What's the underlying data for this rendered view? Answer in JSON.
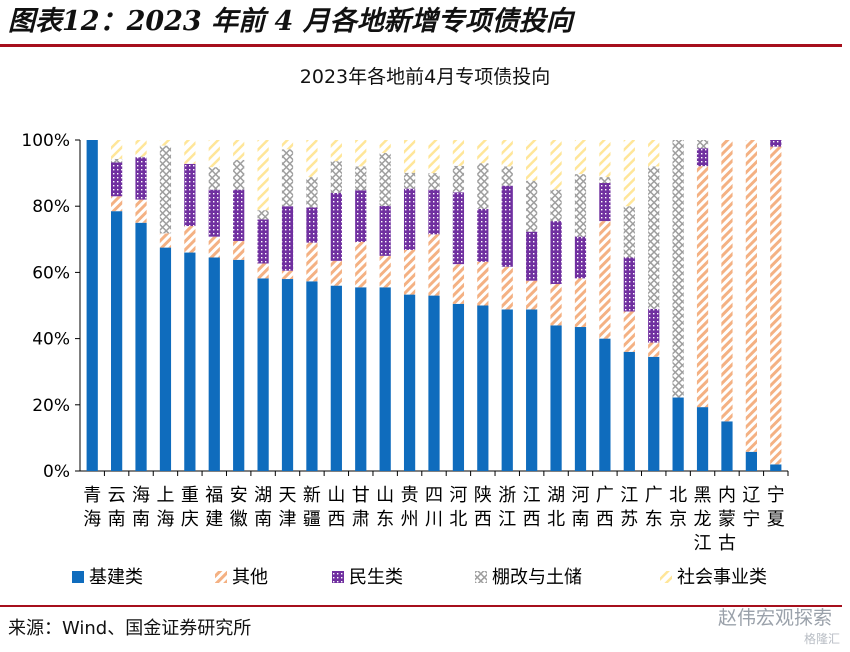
{
  "figure_title": "图表12：2023 年前 4 月各地新增专项债投向",
  "source_text": "来源：Wind、国金证券研究所",
  "watermark": "赵伟宏观探索",
  "watermark_sub": "格隆汇",
  "colors": {
    "rule": "#a60f1c",
    "infrastructure": "#0f6cbd",
    "other": "#f4b183",
    "livelihood": "#7030a0",
    "shantytown": "#bfbfbf",
    "social": "#ffe699"
  },
  "chart_data": {
    "type": "bar",
    "stacked": true,
    "title": "2023年各地前4月专项债投向",
    "ylim": [
      0,
      100
    ],
    "y_ticks": [
      "0%",
      "20%",
      "40%",
      "60%",
      "80%",
      "100%"
    ],
    "grid": false,
    "legend_position": "bottom",
    "categories": [
      "青海",
      "云南",
      "海南",
      "上海",
      "重庆",
      "福建",
      "安徽",
      "湖南",
      "天津",
      "新疆",
      "山西",
      "甘肃",
      "山东",
      "贵州",
      "四川",
      "河北",
      "陕西",
      "浙江",
      "江西",
      "湖北",
      "河南",
      "广西",
      "江苏",
      "广东",
      "北京",
      "黑龙江",
      "内蒙古",
      "辽宁",
      "宁夏"
    ],
    "series": [
      {
        "name": "基建类",
        "values": [
          100,
          78.5,
          75,
          67.5,
          66,
          64.5,
          63.8,
          58.2,
          58,
          57.3,
          56,
          55.5,
          55.5,
          53.3,
          53,
          50.5,
          50,
          48.8,
          48.8,
          44,
          43.5,
          40,
          36,
          34.5,
          22.2,
          19.3,
          15,
          5.8,
          2
        ]
      },
      {
        "name": "其他",
        "values": [
          0,
          4.5,
          7,
          4.3,
          8,
          6.3,
          5.7,
          4.5,
          2.5,
          11.7,
          7.5,
          13.7,
          9.5,
          13.5,
          18.5,
          12,
          13.2,
          12.9,
          8.7,
          12.5,
          14.7,
          35.5,
          12.2,
          4.3,
          0,
          72.8,
          85,
          94.2,
          96
        ]
      },
      {
        "name": "民生类",
        "values": [
          0,
          10.2,
          12.8,
          0,
          18.8,
          14.2,
          15.5,
          13.3,
          19.5,
          10.6,
          20.5,
          15.6,
          15.1,
          18.5,
          13.5,
          21.7,
          16,
          24.5,
          14.8,
          19,
          12.6,
          11.5,
          16.3,
          10.2,
          0,
          5.4,
          0,
          0,
          2
        ]
      },
      {
        "name": "棚改与土储",
        "values": [
          0,
          1.1,
          0.2,
          26.5,
          0,
          6.8,
          9,
          2.8,
          17.2,
          9.2,
          9.6,
          7.2,
          16,
          4.8,
          5,
          8,
          13.8,
          5.8,
          15.4,
          9.5,
          18.9,
          1.8,
          15.5,
          43,
          77.8,
          2.5,
          0,
          0,
          0
        ]
      },
      {
        "name": "社会事业类",
        "values": [
          0,
          5.7,
          5,
          1.7,
          7.2,
          8.2,
          6,
          21.2,
          2.8,
          11.2,
          6.4,
          8,
          3.9,
          9.9,
          10,
          7.8,
          7,
          8,
          12.3,
          15,
          10.3,
          11.2,
          20,
          8,
          0,
          0,
          0,
          0,
          0
        ]
      }
    ]
  }
}
